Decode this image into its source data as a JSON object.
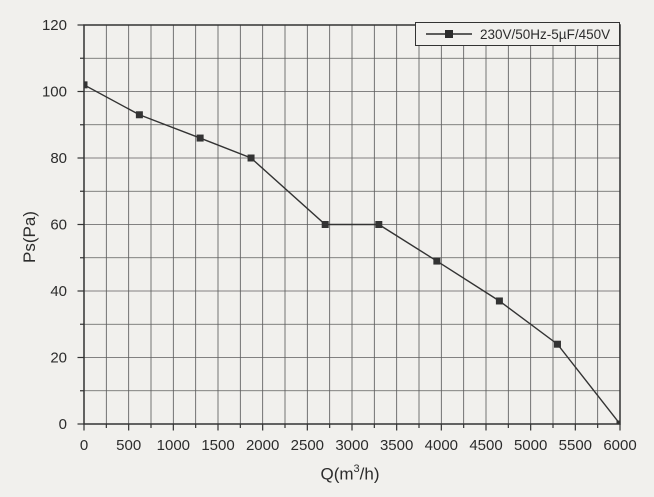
{
  "figure": {
    "background": "#f1f0ed",
    "ink": "#333333",
    "grid_color": "#5d5d5d",
    "text_color": "#2c2c2c"
  },
  "chart_data": {
    "type": "line",
    "xlabel_parts": {
      "pre": "Q(m",
      "sup": "3",
      "post": "/h)"
    },
    "ylabel": "Ps(Pa)",
    "xlim": [
      0,
      6000
    ],
    "ylim": [
      0,
      120
    ],
    "x_major_step": 500,
    "x_minor_step": 250,
    "y_major_step": 20,
    "y_minor_step": 10,
    "grid": true,
    "x_tick_labels": [
      "0",
      "500",
      "1000",
      "1500",
      "2000",
      "2500",
      "3000",
      "3500",
      "4000",
      "4500",
      "5000",
      "5500",
      "6000"
    ],
    "y_tick_labels": [
      "0",
      "20",
      "40",
      "60",
      "80",
      "100",
      "120"
    ],
    "legend": {
      "position": "top-right",
      "entries": [
        {
          "label": "230V/50Hz-5µF/450V",
          "marker": "filled-square",
          "line": true
        }
      ]
    },
    "series": [
      {
        "name": "230V/50Hz-5µF/450V",
        "x": [
          0,
          620,
          1300,
          1870,
          2700,
          3300,
          3950,
          4650,
          5300,
          6000
        ],
        "y": [
          102,
          93,
          86,
          80,
          60,
          60,
          49,
          37,
          24,
          0
        ]
      }
    ]
  }
}
